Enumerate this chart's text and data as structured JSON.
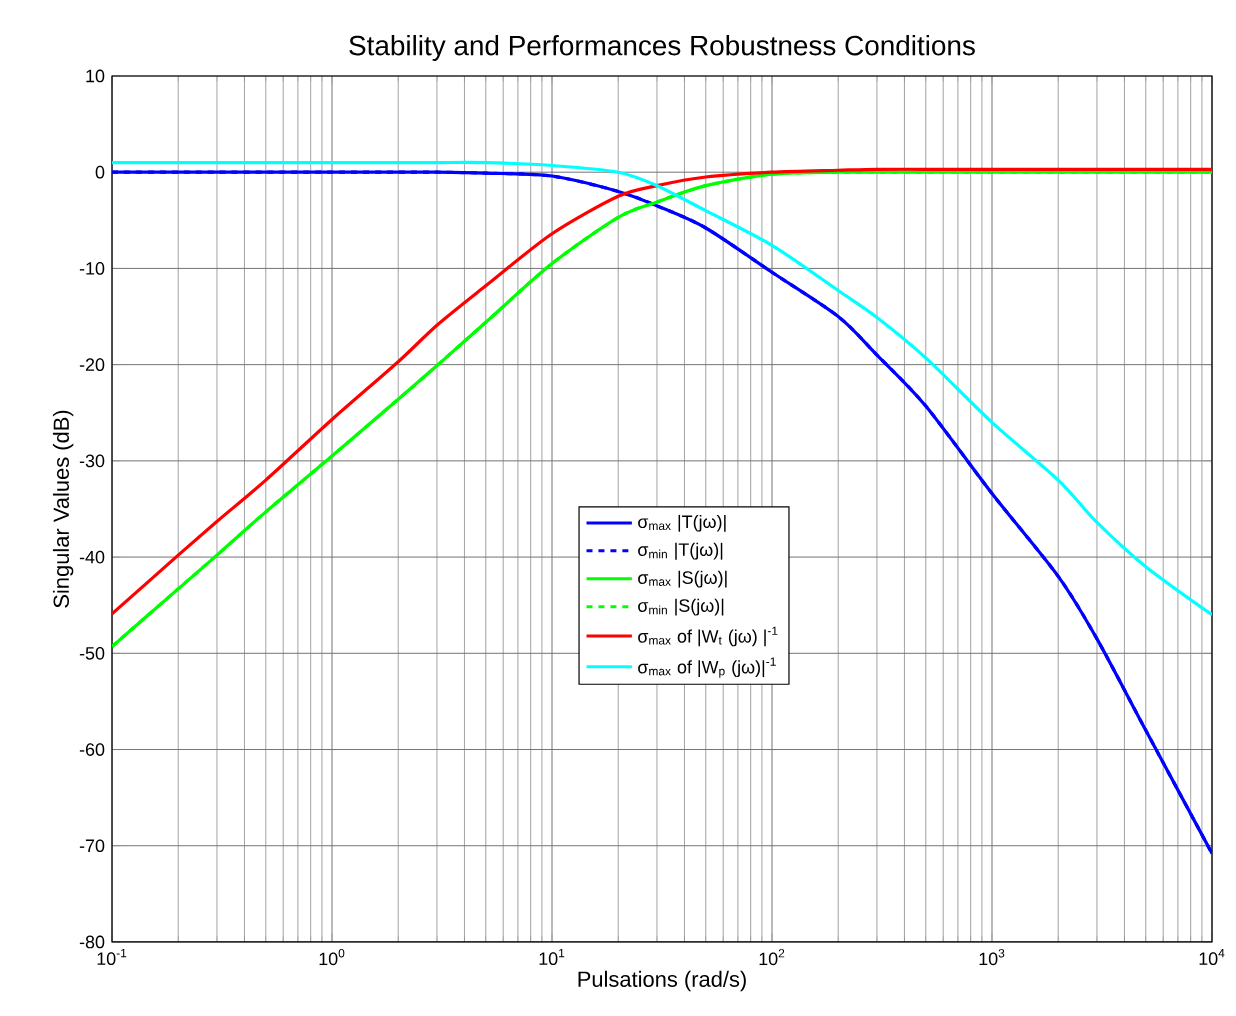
{
  "chart_data": {
    "type": "line",
    "title": "Stability and Performances Robustness Conditions",
    "xlabel": "Pulsations (rad/s)",
    "ylabel": "Singular Values (dB)",
    "log": "x",
    "grid": true,
    "legend": "center",
    "marker": "none",
    "xlim": [
      0.1,
      10000
    ],
    "ylim": [
      -80,
      10
    ],
    "xticks": [
      {
        "value": 0.1,
        "label": "10$^{-1}$"
      },
      {
        "value": 1,
        "label": "10$^{0}$"
      },
      {
        "value": 10,
        "label": "10$^{1}$"
      },
      {
        "value": 100,
        "label": "10$^{2}$"
      },
      {
        "value": 1000,
        "label": "10$^{3}$"
      },
      {
        "value": 10000,
        "label": "10$^{4}$"
      }
    ],
    "yticks": [
      -80,
      -70,
      -60,
      -50,
      -40,
      -30,
      -20,
      -10,
      0,
      10
    ],
    "x": [
      0.1,
      0.2,
      0.3,
      0.5,
      1,
      2,
      3,
      5,
      10,
      20,
      30,
      50,
      100,
      200,
      300,
      500,
      1000,
      2000,
      3000,
      5000,
      10000
    ],
    "series": [
      {
        "name": "σ$_{max}$ |T(jω)|",
        "color": "#0000ff",
        "line_style": "solid",
        "values": [
          0,
          0,
          0,
          0,
          0,
          0,
          0,
          -0.1,
          -0.4,
          -2,
          -3.5,
          -5.8,
          -10.4,
          -15,
          -19,
          -24.3,
          -33.4,
          -42,
          -48.5,
          -58,
          -70.8
        ]
      },
      {
        "name": "σ$_{min}$ |T(jω)|",
        "color": "#0000ff",
        "line_style": "dashed",
        "values": [
          0,
          0,
          0,
          0,
          0,
          0,
          0,
          -0.1,
          -0.4,
          -2,
          -3.5,
          -5.8,
          -10.4,
          -15,
          -19,
          -24.3,
          -33.4,
          -42,
          -48.5,
          -58,
          -70.8
        ]
      },
      {
        "name": "σ$_{max}$ |S(jω)|",
        "color": "#00ff00",
        "line_style": "solid",
        "values": [
          -49.3,
          -43.3,
          -39.8,
          -35.3,
          -29.5,
          -23.6,
          -20.1,
          -15.6,
          -9.5,
          -4.7,
          -3.1,
          -1.4,
          -0.2,
          0,
          0,
          0,
          0,
          0,
          0,
          0,
          0
        ]
      },
      {
        "name": "σ$_{min}$ |S(jω)|",
        "color": "#00ff00",
        "line_style": "dashed",
        "values": [
          -49.3,
          -43.3,
          -39.8,
          -35.3,
          -29.5,
          -23.6,
          -20.1,
          -15.6,
          -9.5,
          -4.7,
          -3.1,
          -1.4,
          -0.2,
          0,
          0,
          0,
          0,
          0,
          0,
          0,
          0
        ]
      },
      {
        "name": "σ$_{max}$ of |W$_{t}$ (jω) |$^{-1}$",
        "color": "#ff0000",
        "line_style": "solid",
        "values": [
          -45.9,
          -39.8,
          -36.3,
          -32,
          -25.7,
          -19.7,
          -15.9,
          -11.8,
          -6.4,
          -2.5,
          -1.4,
          -0.5,
          0,
          0.2,
          0.3,
          0.3,
          0.3,
          0.3,
          0.3,
          0.3,
          0.3
        ]
      },
      {
        "name": "σ$_{max}$ of |W$_{p}$ (jω)|$^{-1}$",
        "color": "#00ffff",
        "line_style": "solid",
        "values": [
          1,
          1,
          1,
          1,
          1,
          1,
          1,
          1,
          0.7,
          0,
          -1.4,
          -4,
          -7.6,
          -12.3,
          -15.1,
          -19.3,
          -26,
          -32,
          -36.4,
          -41,
          -46
        ]
      }
    ]
  }
}
